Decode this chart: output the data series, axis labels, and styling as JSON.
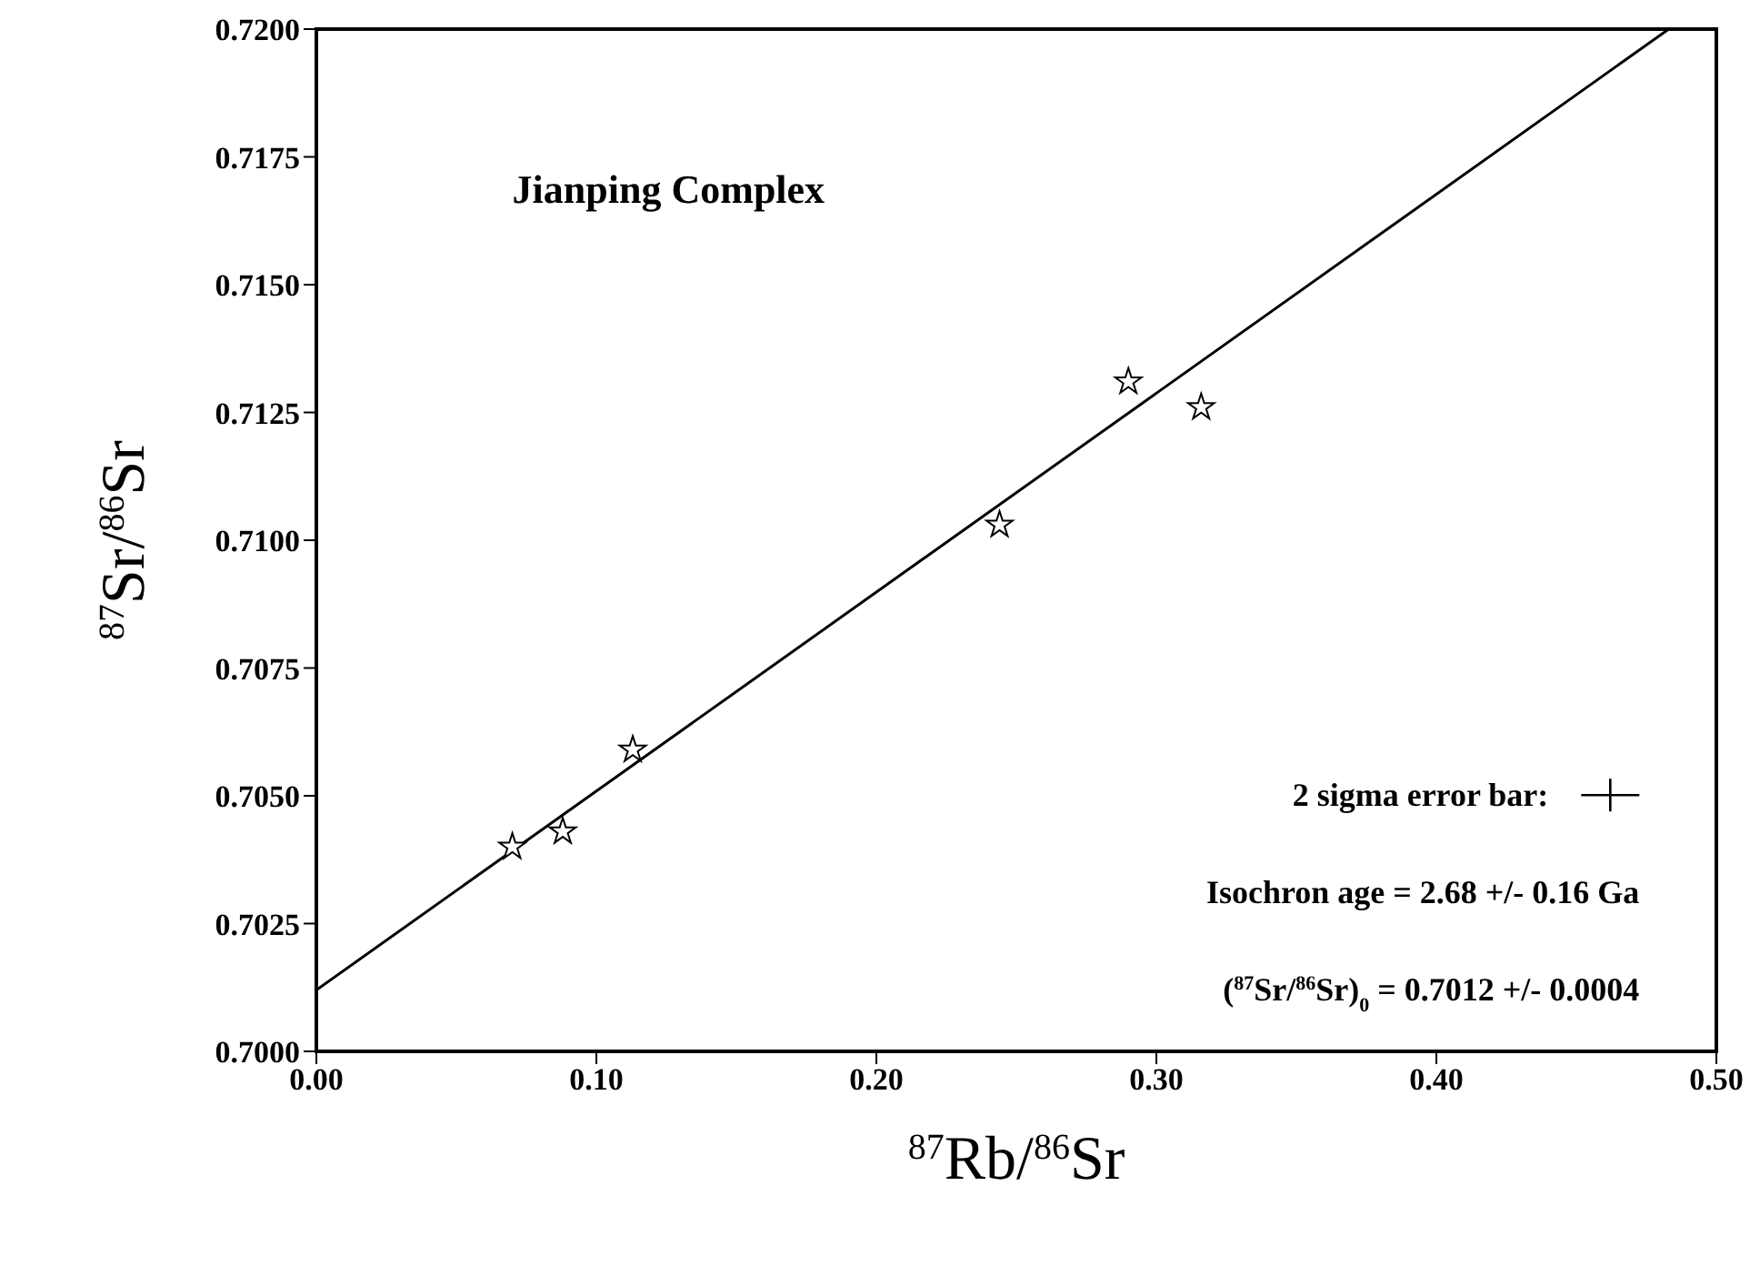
{
  "chart_data": {
    "type": "scatter",
    "title": "Jianping Complex",
    "xlabel": "$^{87}$Rb/$^{86}$Sr",
    "ylabel": "$^{87}$Sr/$^{86}$Sr",
    "annotations": [
      "2 sigma error bar:",
      "Isochron age = 2.68 +/- 0.16 Ga",
      "($^{87}$Sr/$^{86}$Sr)$_{0}$ = 0.7012 +/- 0.0004"
    ],
    "series": [
      {
        "color": "#000000",
        "marker": "star",
        "x": [
          0.07,
          0.088,
          0.113,
          0.244,
          0.29,
          0.316
        ],
        "values": [
          0.704,
          0.7043,
          0.7059,
          0.7103,
          0.7131,
          0.7126
        ]
      },
      {
        "type": "line",
        "color": "#000000",
        "marker": "none",
        "line_style": "solid",
        "x": [
          0,
          0.483
        ],
        "values": [
          0.7012,
          0.72
        ]
      }
    ],
    "xlim": [
      0,
      0.5
    ],
    "xticks": [
      {
        "value": 0,
        "label": "0.00"
      },
      {
        "value": 0.1,
        "label": "0.10"
      },
      {
        "value": 0.2,
        "label": "0.20"
      },
      {
        "value": 0.3,
        "label": "0.30"
      },
      {
        "value": 0.4,
        "label": "0.40"
      },
      {
        "value": 0.5,
        "label": "0.50"
      }
    ],
    "ylim": [
      0.7,
      0.72
    ],
    "yticks": [
      {
        "value": 0.7,
        "label": "0.7000"
      },
      {
        "value": 0.7025,
        "label": "0.7025"
      },
      {
        "value": 0.705,
        "label": "0.7050"
      },
      {
        "value": 0.7075,
        "label": "0.7075"
      },
      {
        "value": 0.71,
        "label": "0.7100"
      },
      {
        "value": 0.7125,
        "label": "0.7125"
      },
      {
        "value": 0.715,
        "label": "0.7150"
      },
      {
        "value": 0.7175,
        "label": "0.7175"
      },
      {
        "value": 0.72,
        "label": "0.7200"
      }
    ]
  }
}
